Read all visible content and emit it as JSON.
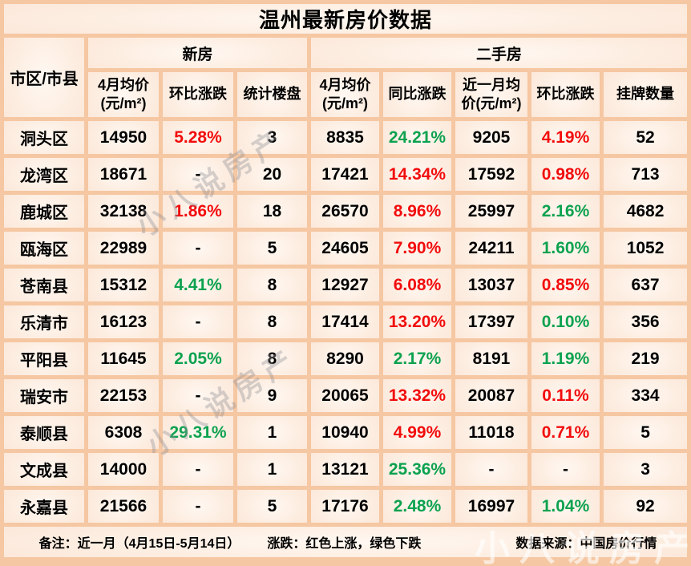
{
  "title": "温州最新房价数据",
  "colors": {
    "up_red": "#f20d0d",
    "down_green": "#0ca24f",
    "text_black": "#000000",
    "border_peach": "#f5c7a2",
    "cell_center": "#fff8f2",
    "cell_edge": "#fae1d0"
  },
  "table": {
    "corner_header": "市区/市县",
    "groups": [
      {
        "label": "新房",
        "span": 3
      },
      {
        "label": "二手房",
        "span": 5
      }
    ],
    "columns": [
      "4月均价(元/m²)",
      "环比涨跌",
      "统计楼盘",
      "4月均价(元/m²)",
      "同比涨跌",
      "近一月均价(元/m²)",
      "环比涨跌",
      "挂牌数量"
    ],
    "rows": [
      {
        "district": "洞头区",
        "cells": [
          {
            "v": "14950",
            "c": "k"
          },
          {
            "v": "5.28%",
            "c": "r"
          },
          {
            "v": "3",
            "c": "k"
          },
          {
            "v": "8835",
            "c": "k"
          },
          {
            "v": "24.21%",
            "c": "g"
          },
          {
            "v": "9205",
            "c": "k"
          },
          {
            "v": "4.19%",
            "c": "r"
          },
          {
            "v": "52",
            "c": "k"
          }
        ]
      },
      {
        "district": "龙湾区",
        "cells": [
          {
            "v": "18671",
            "c": "k"
          },
          {
            "v": "-",
            "c": "k"
          },
          {
            "v": "20",
            "c": "k"
          },
          {
            "v": "17421",
            "c": "k"
          },
          {
            "v": "14.34%",
            "c": "r"
          },
          {
            "v": "17592",
            "c": "k"
          },
          {
            "v": "0.98%",
            "c": "r"
          },
          {
            "v": "713",
            "c": "k"
          }
        ]
      },
      {
        "district": "鹿城区",
        "cells": [
          {
            "v": "32138",
            "c": "k"
          },
          {
            "v": "1.86%",
            "c": "r"
          },
          {
            "v": "18",
            "c": "k"
          },
          {
            "v": "26570",
            "c": "k"
          },
          {
            "v": "8.96%",
            "c": "r"
          },
          {
            "v": "25997",
            "c": "k"
          },
          {
            "v": "2.16%",
            "c": "g"
          },
          {
            "v": "4682",
            "c": "k"
          }
        ]
      },
      {
        "district": "瓯海区",
        "cells": [
          {
            "v": "22989",
            "c": "k"
          },
          {
            "v": "-",
            "c": "k"
          },
          {
            "v": "5",
            "c": "k"
          },
          {
            "v": "24605",
            "c": "k"
          },
          {
            "v": "7.90%",
            "c": "r"
          },
          {
            "v": "24211",
            "c": "k"
          },
          {
            "v": "1.60%",
            "c": "g"
          },
          {
            "v": "1052",
            "c": "k"
          }
        ]
      },
      {
        "district": "苍南县",
        "cells": [
          {
            "v": "15312",
            "c": "k"
          },
          {
            "v": "4.41%",
            "c": "g"
          },
          {
            "v": "8",
            "c": "k"
          },
          {
            "v": "12927",
            "c": "k"
          },
          {
            "v": "6.08%",
            "c": "r"
          },
          {
            "v": "13037",
            "c": "k"
          },
          {
            "v": "0.85%",
            "c": "r"
          },
          {
            "v": "637",
            "c": "k"
          }
        ]
      },
      {
        "district": "乐清市",
        "cells": [
          {
            "v": "16123",
            "c": "k"
          },
          {
            "v": "-",
            "c": "k"
          },
          {
            "v": "8",
            "c": "k"
          },
          {
            "v": "17414",
            "c": "k"
          },
          {
            "v": "13.20%",
            "c": "r"
          },
          {
            "v": "17397",
            "c": "k"
          },
          {
            "v": "0.10%",
            "c": "g"
          },
          {
            "v": "356",
            "c": "k"
          }
        ]
      },
      {
        "district": "平阳县",
        "cells": [
          {
            "v": "11645",
            "c": "k"
          },
          {
            "v": "2.05%",
            "c": "g"
          },
          {
            "v": "8",
            "c": "k"
          },
          {
            "v": "8290",
            "c": "k"
          },
          {
            "v": "2.17%",
            "c": "g"
          },
          {
            "v": "8191",
            "c": "k"
          },
          {
            "v": "1.19%",
            "c": "g"
          },
          {
            "v": "219",
            "c": "k"
          }
        ]
      },
      {
        "district": "瑞安市",
        "cells": [
          {
            "v": "22153",
            "c": "k"
          },
          {
            "v": "-",
            "c": "k"
          },
          {
            "v": "9",
            "c": "k"
          },
          {
            "v": "20065",
            "c": "k"
          },
          {
            "v": "13.32%",
            "c": "r"
          },
          {
            "v": "20087",
            "c": "k"
          },
          {
            "v": "0.11%",
            "c": "r"
          },
          {
            "v": "334",
            "c": "k"
          }
        ]
      },
      {
        "district": "泰顺县",
        "cells": [
          {
            "v": "6308",
            "c": "k"
          },
          {
            "v": "29.31%",
            "c": "g"
          },
          {
            "v": "1",
            "c": "k"
          },
          {
            "v": "10940",
            "c": "k"
          },
          {
            "v": "4.99%",
            "c": "r"
          },
          {
            "v": "11018",
            "c": "k"
          },
          {
            "v": "0.71%",
            "c": "r"
          },
          {
            "v": "5",
            "c": "k"
          }
        ]
      },
      {
        "district": "文成县",
        "cells": [
          {
            "v": "14000",
            "c": "k"
          },
          {
            "v": "-",
            "c": "k"
          },
          {
            "v": "1",
            "c": "k"
          },
          {
            "v": "13121",
            "c": "k"
          },
          {
            "v": "25.36%",
            "c": "g"
          },
          {
            "v": "-",
            "c": "k"
          },
          {
            "v": "-",
            "c": "k"
          },
          {
            "v": "3",
            "c": "k"
          }
        ]
      },
      {
        "district": "永嘉县",
        "cells": [
          {
            "v": "21566",
            "c": "k"
          },
          {
            "v": "-",
            "c": "k"
          },
          {
            "v": "5",
            "c": "k"
          },
          {
            "v": "17176",
            "c": "k"
          },
          {
            "v": "2.48%",
            "c": "g"
          },
          {
            "v": "16997",
            "c": "k"
          },
          {
            "v": "1.04%",
            "c": "g"
          },
          {
            "v": "92",
            "c": "k"
          }
        ]
      }
    ]
  },
  "footer": {
    "note": "备注：近一月（4月15日-5月14日）",
    "legend": "涨跌：红色上涨，绿色下跌",
    "source": "数据来源：中国房价行情"
  },
  "watermark": {
    "text": "小八说房产"
  }
}
